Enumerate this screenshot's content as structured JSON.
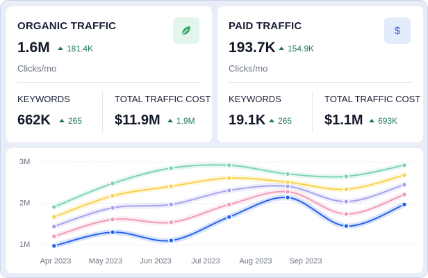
{
  "cards": [
    {
      "title": "ORGANIC TRAFFIC",
      "value": "1.6M",
      "delta": "181.4K",
      "unit": "Clicks/mo",
      "keywords_label": "KEYWORDS",
      "keywords": "662K",
      "keywords_delta": "265",
      "cost_label": "TOTAL TRAFFIC COST",
      "cost": "$11.9M",
      "cost_delta": "1.9M"
    },
    {
      "title": "PAID TRAFFIC",
      "icon_text": "$",
      "value": "193.7K",
      "delta": "154.9K",
      "unit": "Clicks/mo",
      "keywords_label": "KEYWORDS",
      "keywords": "19.1K",
      "keywords_delta": "265",
      "cost_label": "TOTAL TRAFFIC COST",
      "cost": "$1.1M",
      "cost_delta": "693K"
    }
  ],
  "chart_data": {
    "type": "line",
    "x": [
      -0.03,
      1.14,
      2.31,
      3.47,
      4.64,
      5.81,
      6.97
    ],
    "xlim": [
      -0.1,
      7.1
    ],
    "xticks": [
      {
        "value": 0,
        "label": "Apr 2023"
      },
      {
        "value": 1,
        "label": "May 2023"
      },
      {
        "value": 2,
        "label": "Jun 2023"
      },
      {
        "value": 3,
        "label": "Jul 2023"
      },
      {
        "value": 4,
        "label": "Aug 2023"
      },
      {
        "value": 5,
        "label": "Sep 2023"
      }
    ],
    "ylim": [
      800000,
      3200000
    ],
    "yticks": [
      {
        "value": 1000000,
        "label": "1M"
      },
      {
        "value": 2000000,
        "label": "2M"
      },
      {
        "value": 3000000,
        "label": "3M"
      }
    ],
    "grid": true,
    "series": [
      {
        "color": "#7dd3b8",
        "values": [
          1910000,
          2480000,
          2850000,
          2920000,
          2710000,
          2650000,
          2920000
        ]
      },
      {
        "color": "#f7d24a",
        "values": [
          1670000,
          2180000,
          2410000,
          2610000,
          2510000,
          2340000,
          2680000
        ]
      },
      {
        "color": "#a5a3ee",
        "values": [
          1440000,
          1890000,
          1970000,
          2310000,
          2410000,
          2040000,
          2450000
        ]
      },
      {
        "color": "#f19bb7",
        "values": [
          1200000,
          1610000,
          1540000,
          1970000,
          2280000,
          1740000,
          2210000
        ]
      },
      {
        "color": "#2563eb",
        "values": [
          970000,
          1300000,
          1100000,
          1670000,
          2140000,
          1450000,
          1970000
        ]
      }
    ]
  }
}
